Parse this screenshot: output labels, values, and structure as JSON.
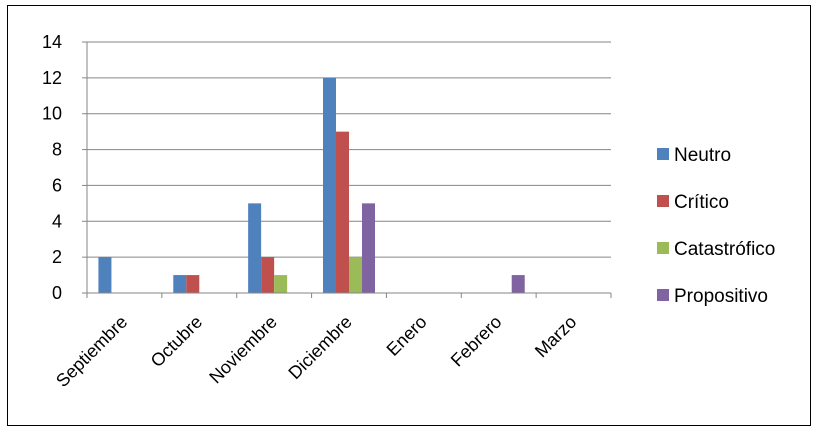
{
  "chart_data": {
    "type": "bar",
    "categories": [
      "Septiembre",
      "Octubre",
      "Noviembre",
      "Diciembre",
      "Enero",
      "Febrero",
      "Marzo"
    ],
    "series": [
      {
        "name": "Neutro",
        "color": "#4F81BD",
        "values": [
          2,
          1,
          5,
          12,
          0,
          0,
          0
        ]
      },
      {
        "name": "Crítico",
        "color": "#C0504D",
        "values": [
          0,
          1,
          2,
          9,
          0,
          0,
          0
        ]
      },
      {
        "name": "Catastrófico",
        "color": "#9BBB59",
        "values": [
          0,
          0,
          1,
          2,
          0,
          0,
          0
        ]
      },
      {
        "name": "Propositivo",
        "color": "#8064A2",
        "values": [
          0,
          0,
          0,
          5,
          0,
          1,
          0
        ]
      }
    ],
    "ylim": [
      0,
      14
    ],
    "yticks": [
      0,
      2,
      4,
      6,
      8,
      10,
      12,
      14
    ],
    "grid": true,
    "legend_position": "right"
  }
}
